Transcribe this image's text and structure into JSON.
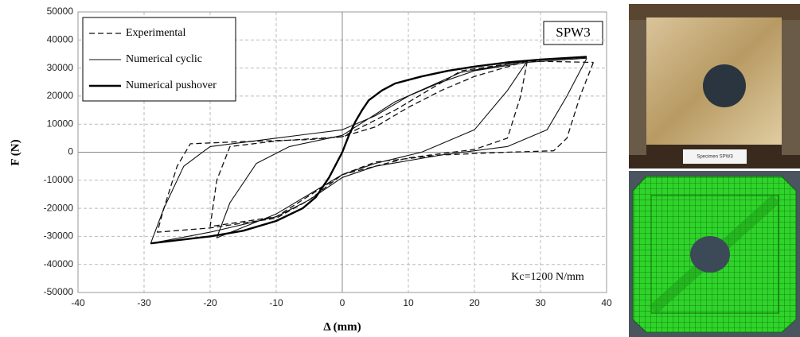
{
  "chart_data": {
    "type": "line",
    "x_label": "Δ (mm)",
    "y_label": "F (N)",
    "annotations": [
      "SPW3",
      "Kc=1200 N/mm"
    ],
    "xlim": [
      -40,
      40
    ],
    "xticks": [
      -40,
      -30,
      -20,
      -10,
      0,
      10,
      20,
      30,
      40
    ],
    "ylim": [
      -50000,
      50000
    ],
    "yticks": [
      -50000,
      -40000,
      -30000,
      -20000,
      -10000,
      0,
      10000,
      20000,
      30000,
      40000,
      50000
    ],
    "grid": true,
    "legend": "upper left",
    "series": [
      {
        "name": "Experimental",
        "color": "#111111",
        "linestyle": "dashed",
        "linewidth": 1.3,
        "x": [
          38,
          36,
          34,
          32,
          25,
          15,
          5,
          0,
          -5,
          -10,
          -20,
          -28,
          -27,
          -25,
          -23,
          -15,
          -5,
          0,
          5,
          10,
          15,
          20,
          28,
          38,
          null,
          28,
          27,
          25,
          20,
          10,
          0,
          -10,
          -20,
          -19,
          -17,
          -10,
          0,
          8,
          18,
          28
        ],
        "values": [
          32000,
          20000,
          5000,
          500,
          0,
          -1000,
          -3500,
          -8000,
          -17000,
          -23500,
          -27000,
          -28500,
          -20000,
          -5000,
          3000,
          3800,
          4500,
          5500,
          9000,
          16000,
          22000,
          27000,
          32500,
          32000,
          null,
          32500,
          20000,
          5000,
          1000,
          -2000,
          -8000,
          -23000,
          -26500,
          -10000,
          2000,
          4000,
          5500,
          15000,
          29000,
          32500
        ]
      },
      {
        "name": "Numerical cyclic",
        "color": "#111111",
        "linestyle": "solid",
        "linewidth": 1.1,
        "x": [
          37,
          34,
          31,
          25,
          15,
          5,
          0,
          -5,
          -10,
          -20,
          -29,
          -27,
          -24,
          -20,
          -10,
          0,
          5,
          10,
          15,
          20,
          28,
          37,
          null,
          28,
          25,
          20,
          12,
          5,
          0,
          -10,
          -19,
          -17,
          -13,
          -8,
          0,
          8,
          18,
          28
        ],
        "values": [
          33500,
          20000,
          8000,
          2000,
          -1000,
          -5000,
          -9000,
          -17000,
          -23000,
          -28500,
          -32500,
          -20000,
          -5000,
          2000,
          5000,
          8000,
          13000,
          20000,
          25000,
          29000,
          32000,
          33500,
          null,
          32500,
          22000,
          8000,
          0,
          -4000,
          -8000,
          -22000,
          -30500,
          -18000,
          -4000,
          2000,
          6000,
          18000,
          28500,
          32500
        ]
      },
      {
        "name": "Numerical pushover",
        "color": "#000000",
        "linestyle": "solid",
        "linewidth": 2.4,
        "x": [
          -29,
          -20,
          -15,
          -10,
          -6,
          -4,
          -2,
          0,
          1,
          2,
          3,
          4,
          6,
          8,
          12,
          16,
          20,
          25,
          30,
          37
        ],
        "values": [
          -32500,
          -30000,
          -28000,
          -24500,
          -20000,
          -16000,
          -9000,
          0,
          6000,
          11000,
          15000,
          18500,
          22000,
          24500,
          27000,
          29000,
          30500,
          32000,
          33000,
          34000
        ]
      }
    ]
  },
  "photo_label": "Specimen SPW3"
}
